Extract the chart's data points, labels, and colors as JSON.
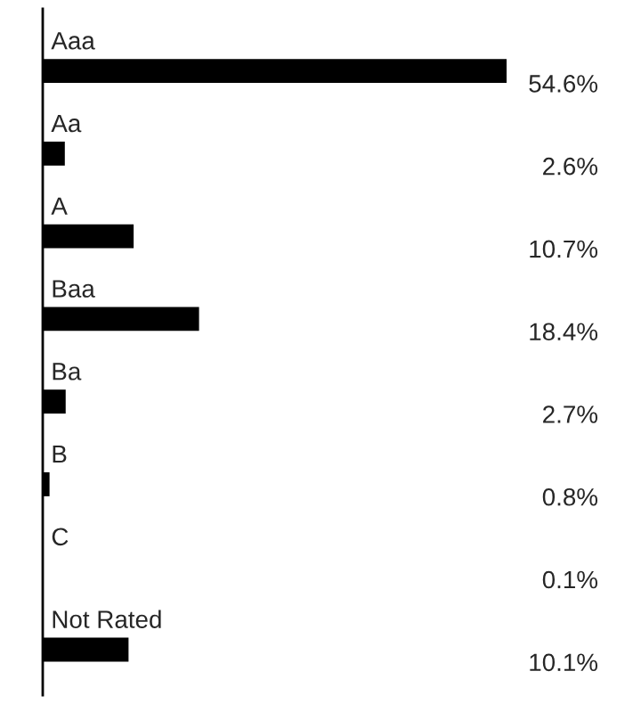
{
  "chart_data": {
    "type": "bar",
    "orientation": "horizontal",
    "categories": [
      "Aaa",
      "Aa",
      "A",
      "Baa",
      "Ba",
      "B",
      "C",
      "Not Rated"
    ],
    "values": [
      54.6,
      2.6,
      10.7,
      18.4,
      2.7,
      0.8,
      0.1,
      10.1
    ],
    "value_labels": [
      "54.6%",
      "2.6%",
      "10.7%",
      "18.4%",
      "2.7%",
      "0.8%",
      "0.1%",
      "10.1%"
    ],
    "color": "#000000",
    "tick_labels": false
  }
}
